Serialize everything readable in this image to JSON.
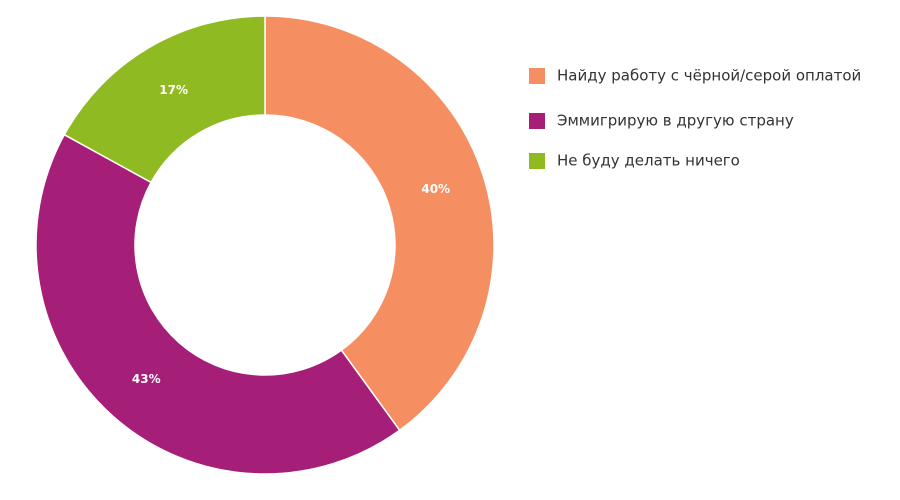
{
  "chart_data": {
    "type": "donut",
    "categories": [
      "Найду работу с чёрной/серой оплатой",
      "Эммигрирую в другую страну",
      "Не буду делать ничего"
    ],
    "values": [
      40,
      43,
      17
    ],
    "value_labels": [
      "40%",
      "43%",
      "17%"
    ],
    "colors": [
      "#f58f61",
      "#a51e78",
      "#8fba22"
    ],
    "legend": "right"
  }
}
